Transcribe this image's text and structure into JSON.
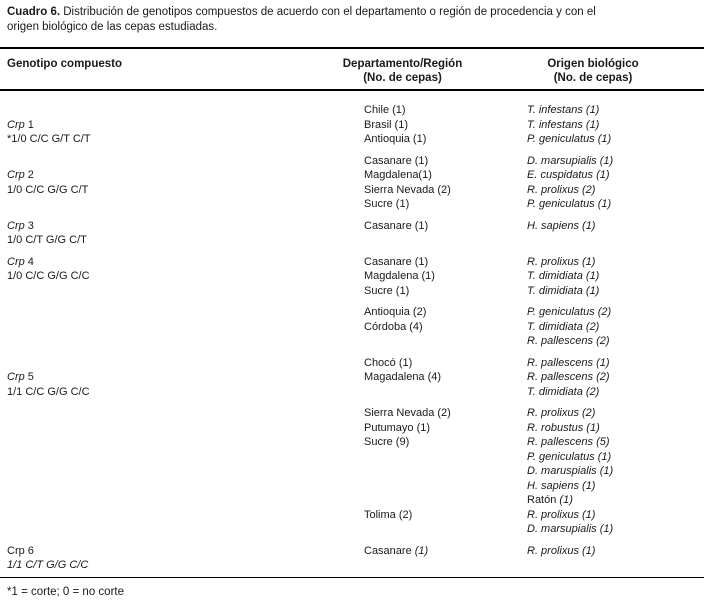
{
  "title": {
    "label": "Cuadro 6.",
    "line1_rest": " Distribución de genotipos compuestos de acuerdo con el departamento o región de procedencia y con el",
    "line2": "origen biológico de las cepas estudiadas."
  },
  "columns": {
    "genotype": "Genotipo compuesto",
    "department": "Departamento/Región",
    "department_sub": "(No. de cepas)",
    "origin": "Origen biológico",
    "origin_sub": "(No. de cepas)"
  },
  "footnote": "*1 = corte; 0 = no corte",
  "table": {
    "rows": [
      {
        "genotype": [],
        "department": [
          {
            "t": "Chile (1)",
            "i": false
          }
        ],
        "origin": [
          {
            "t": "T. infestans (1)",
            "i": true
          }
        ]
      },
      {
        "genotype": [
          {
            "t": "Crp",
            "i": true
          },
          {
            "t": " 1",
            "i": false
          }
        ],
        "department": [
          {
            "t": "Brasil (1)",
            "i": false
          }
        ],
        "origin": [
          {
            "t": "T. infestans (1)",
            "i": true
          }
        ]
      },
      {
        "genotype": [
          {
            "t": "*1/0 C/C G/T C/T",
            "i": false
          }
        ],
        "department": [
          {
            "t": "Antioquia (1)",
            "i": false
          }
        ],
        "origin": [
          {
            "t": "P. geniculatus (1)",
            "i": true
          }
        ]
      },
      {
        "gap": true,
        "genotype": [],
        "department": [
          {
            "t": "Casanare (1)",
            "i": false
          }
        ],
        "origin": [
          {
            "t": "D. marsupialis (1)",
            "i": true
          }
        ]
      },
      {
        "genotype": [
          {
            "t": "Crp",
            "i": true
          },
          {
            "t": " 2",
            "i": false
          }
        ],
        "department": [
          {
            "t": "Magdalena(1)",
            "i": false
          }
        ],
        "origin": [
          {
            "t": "E. cuspidatus (1)",
            "i": true
          }
        ]
      },
      {
        "genotype": [
          {
            "t": "1/0 C/C G/G C/T",
            "i": false
          }
        ],
        "department": [
          {
            "t": "Sierra Nevada (2)",
            "i": false
          }
        ],
        "origin": [
          {
            "t": "R. prolixus (2)",
            "i": true
          }
        ]
      },
      {
        "genotype": [],
        "department": [
          {
            "t": "Sucre (1)",
            "i": false
          }
        ],
        "origin": [
          {
            "t": "P. geniculatus (1)",
            "i": true
          }
        ]
      },
      {
        "gap": true,
        "genotype": [
          {
            "t": "Crp",
            "i": true
          },
          {
            "t": " 3",
            "i": false
          }
        ],
        "department": [
          {
            "t": "Casanare (1)",
            "i": false
          }
        ],
        "origin": [
          {
            "t": "H. sapiens (1)",
            "i": true
          }
        ]
      },
      {
        "genotype": [
          {
            "t": "1/0 C/T G/G C/T",
            "i": false
          }
        ],
        "department": [],
        "origin": []
      },
      {
        "gap": true,
        "genotype": [
          {
            "t": "Crp",
            "i": true
          },
          {
            "t": " 4",
            "i": false
          }
        ],
        "department": [
          {
            "t": "Casanare (1)",
            "i": false
          }
        ],
        "origin": [
          {
            "t": "R. prolixus (1)",
            "i": true
          }
        ]
      },
      {
        "genotype": [
          {
            "t": "1/0 C/C G/G C/C",
            "i": false
          }
        ],
        "department": [
          {
            "t": "Magdalena (1)",
            "i": false
          }
        ],
        "origin": [
          {
            "t": "T. dimidiata (1)",
            "i": true
          }
        ]
      },
      {
        "genotype": [],
        "department": [
          {
            "t": "Sucre (1)",
            "i": false
          }
        ],
        "origin": [
          {
            "t": "T. dimidiata (1)",
            "i": true
          }
        ]
      },
      {
        "gap": true,
        "genotype": [],
        "department": [
          {
            "t": "Antioquia (2)",
            "i": false
          }
        ],
        "origin": [
          {
            "t": "P. geniculatus (2)",
            "i": true
          }
        ]
      },
      {
        "genotype": [],
        "department": [
          {
            "t": "Córdoba (4)",
            "i": false
          }
        ],
        "origin": [
          {
            "t": "T. dimidiata (2)",
            "i": true
          }
        ]
      },
      {
        "genotype": [],
        "department": [],
        "origin": [
          {
            "t": "R. pallescens (2)",
            "i": true
          }
        ]
      },
      {
        "gap": true,
        "genotype": [],
        "department": [
          {
            "t": "Chocó (1)",
            "i": false
          }
        ],
        "origin": [
          {
            "t": "R. pallescens (1)",
            "i": true
          }
        ]
      },
      {
        "genotype": [
          {
            "t": "Crp",
            "i": true
          },
          {
            "t": " 5",
            "i": false
          }
        ],
        "department": [
          {
            "t": "Magadalena (4)",
            "i": false
          }
        ],
        "origin": [
          {
            "t": "R. pallescens (2)",
            "i": true
          }
        ]
      },
      {
        "genotype": [
          {
            "t": "1/1 C/C G/G C/C",
            "i": false
          }
        ],
        "department": [],
        "origin": [
          {
            "t": "T. dimidiata (2)",
            "i": true
          }
        ]
      },
      {
        "gap": true,
        "genotype": [],
        "department": [
          {
            "t": "Sierra Nevada (2)",
            "i": false
          }
        ],
        "origin": [
          {
            "t": "R. prolixus (2)",
            "i": true
          }
        ]
      },
      {
        "genotype": [],
        "department": [
          {
            "t": "Putumayo (1)",
            "i": false
          }
        ],
        "origin": [
          {
            "t": "R. robustus (1)",
            "i": true
          }
        ]
      },
      {
        "genotype": [],
        "department": [
          {
            "t": "Sucre (9)",
            "i": false
          }
        ],
        "origin": [
          {
            "t": "R. pallescens (5)",
            "i": true
          }
        ]
      },
      {
        "genotype": [],
        "department": [],
        "origin": [
          {
            "t": "P. geniculatus (1)",
            "i": true
          }
        ]
      },
      {
        "genotype": [],
        "department": [],
        "origin": [
          {
            "t": "D. maruspialis (1)",
            "i": true
          }
        ]
      },
      {
        "genotype": [],
        "department": [],
        "origin": [
          {
            "t": "H. sapiens (1)",
            "i": true
          }
        ]
      },
      {
        "genotype": [],
        "department": [],
        "origin": [
          {
            "t": "Ratón ",
            "i": false
          },
          {
            "t": "(1)",
            "i": true
          }
        ]
      },
      {
        "genotype": [],
        "department": [
          {
            "t": "Tolima (2)",
            "i": false
          }
        ],
        "origin": [
          {
            "t": "R. prolixus (1)",
            "i": true
          }
        ]
      },
      {
        "genotype": [],
        "department": [],
        "origin": [
          {
            "t": "D. marsupialis (1)",
            "i": true
          }
        ]
      },
      {
        "gap": true,
        "genotype": [
          {
            "t": "Crp 6",
            "i": false
          }
        ],
        "department": [
          {
            "t": "Casanare ",
            "i": false
          },
          {
            "t": "(1)",
            "i": true
          }
        ],
        "origin": [
          {
            "t": "R. prolixus (1)",
            "i": true
          }
        ]
      },
      {
        "genotype": [
          {
            "t": "1/1 C/T G/G C/C",
            "i": true
          }
        ],
        "department": [],
        "origin": []
      }
    ]
  }
}
